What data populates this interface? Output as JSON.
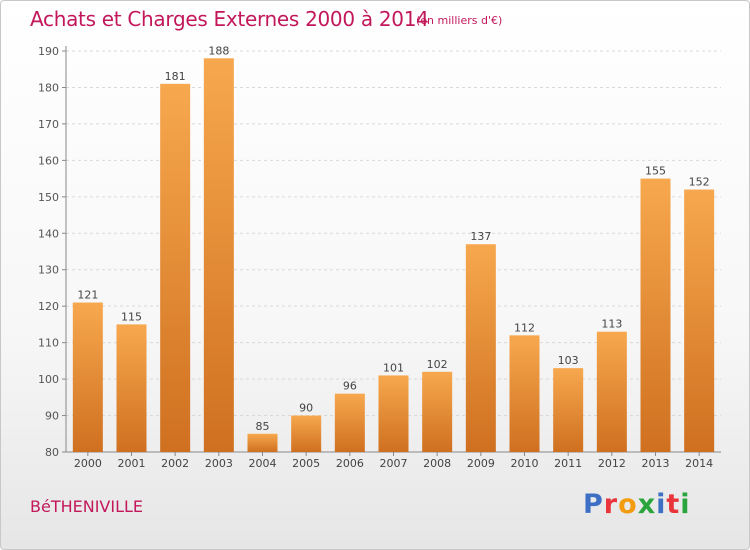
{
  "title": "Achats et Charges Externes 2000 à 2014",
  "subtitle": "(en milliers d'€)",
  "place": "BéTHENIVILLE",
  "logo": {
    "text": "Proxiti",
    "colors": [
      "#3d6fc4",
      "#e8343a",
      "#f39c12",
      "#2aa43c",
      "#3d6fc4",
      "#e8343a",
      "#2aa43c"
    ]
  },
  "colors": {
    "title": "#c2185b",
    "bar_light": "#f7a84e",
    "bar_dark": "#cf7020",
    "axis": "#888888",
    "grid": "#d9d9d9"
  },
  "chart_data": {
    "type": "bar",
    "categories": [
      "2000",
      "2001",
      "2002",
      "2003",
      "2004",
      "2005",
      "2006",
      "2007",
      "2008",
      "2009",
      "2010",
      "2011",
      "2012",
      "2013",
      "2014"
    ],
    "values": [
      121,
      115,
      181,
      188,
      85,
      90,
      96,
      101,
      102,
      137,
      112,
      103,
      113,
      155,
      152
    ],
    "ylim": [
      80,
      190
    ],
    "yticks": [
      80,
      90,
      100,
      110,
      120,
      130,
      140,
      150,
      160,
      170,
      180,
      190
    ],
    "grid": true,
    "xlabel": "",
    "ylabel": ""
  }
}
